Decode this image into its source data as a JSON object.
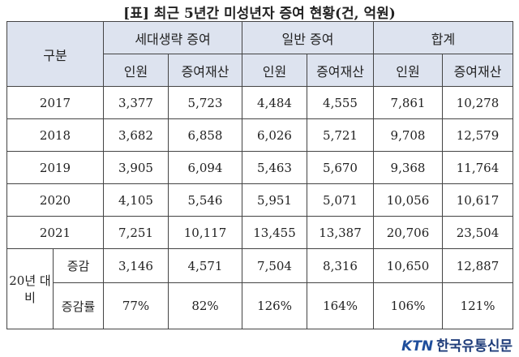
{
  "title": "[표] 최근 5년간 미성년자 증여 현황(건, 억원)",
  "table": {
    "corner": "구분",
    "groups": [
      "세대생략 증여",
      "일반 증여",
      "합계"
    ],
    "subheaders": [
      "인원",
      "증여재산",
      "인원",
      "증여재산",
      "인원",
      "증여재산"
    ],
    "rows": [
      {
        "label": "2017",
        "values": [
          "3,377",
          "5,723",
          "4,484",
          "4,555",
          "7,861",
          "10,278"
        ]
      },
      {
        "label": "2018",
        "values": [
          "3,682",
          "6,858",
          "6,026",
          "5,721",
          "9,708",
          "12,579"
        ]
      },
      {
        "label": "2019",
        "values": [
          "3,905",
          "6,094",
          "5,463",
          "5,670",
          "9,368",
          "11,764"
        ]
      },
      {
        "label": "2020",
        "values": [
          "4,105",
          "5,546",
          "5,951",
          "5,071",
          "10,056",
          "10,617"
        ]
      },
      {
        "label": "2021",
        "values": [
          "7,251",
          "10,117",
          "13,455",
          "13,387",
          "20,706",
          "23,504"
        ]
      }
    ],
    "comparison": {
      "label": "20년 대비",
      "rows": [
        {
          "label": "증감",
          "values": [
            "3,146",
            "4,571",
            "7,504",
            "8,316",
            "10,650",
            "12,887"
          ]
        },
        {
          "label": "증감률",
          "values": [
            "77%",
            "82%",
            "126%",
            "164%",
            "106%",
            "121%"
          ]
        }
      ]
    }
  },
  "logo": {
    "brand": "KTN",
    "name": "한국유통신문"
  }
}
